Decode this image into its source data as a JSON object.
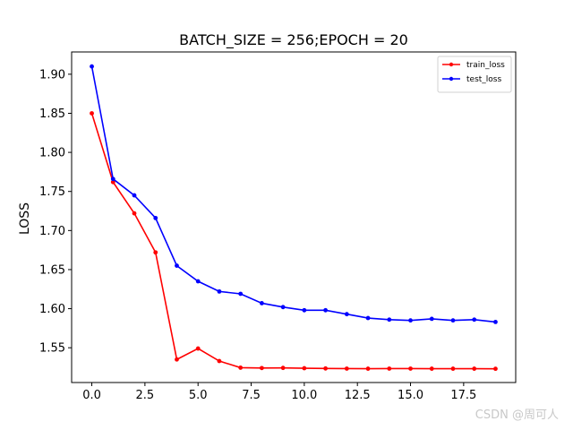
{
  "chart_data": {
    "type": "line",
    "title": "BATCH_SIZE = 256;EPOCH = 20",
    "xlabel": "",
    "ylabel": "LOSS",
    "xlim": [
      -0.95,
      19.95
    ],
    "ylim": [
      1.5055,
      1.9285
    ],
    "xticks": [
      0.0,
      2.5,
      5.0,
      7.5,
      10.0,
      12.5,
      15.0,
      17.5
    ],
    "xtick_labels": [
      "0.0",
      "2.5",
      "5.0",
      "7.5",
      "10.0",
      "12.5",
      "15.0",
      "17.5"
    ],
    "yticks": [
      1.55,
      1.6,
      1.65,
      1.7,
      1.75,
      1.8,
      1.85,
      1.9
    ],
    "ytick_labels": [
      "1.55",
      "1.60",
      "1.65",
      "1.70",
      "1.75",
      "1.80",
      "1.85",
      "1.90"
    ],
    "grid": false,
    "legend_position": "top-right",
    "x": [
      0,
      1,
      2,
      3,
      4,
      5,
      6,
      7,
      8,
      9,
      10,
      11,
      12,
      13,
      14,
      15,
      16,
      17,
      18,
      19
    ],
    "series": [
      {
        "name": "train_loss",
        "color": "#ff0000",
        "values": [
          1.85,
          1.762,
          1.722,
          1.672,
          1.535,
          1.549,
          1.533,
          1.5245,
          1.524,
          1.5242,
          1.5238,
          1.5235,
          1.5233,
          1.5232,
          1.5233,
          1.5233,
          1.5232,
          1.5232,
          1.5232,
          1.5231
        ]
      },
      {
        "name": "test_loss",
        "color": "#0000ff",
        "values": [
          1.91,
          1.766,
          1.745,
          1.716,
          1.655,
          1.635,
          1.622,
          1.619,
          1.607,
          1.602,
          1.598,
          1.598,
          1.593,
          1.588,
          1.586,
          1.585,
          1.587,
          1.585,
          1.586,
          1.583
        ]
      }
    ]
  },
  "watermark": "CSDN @周可人"
}
